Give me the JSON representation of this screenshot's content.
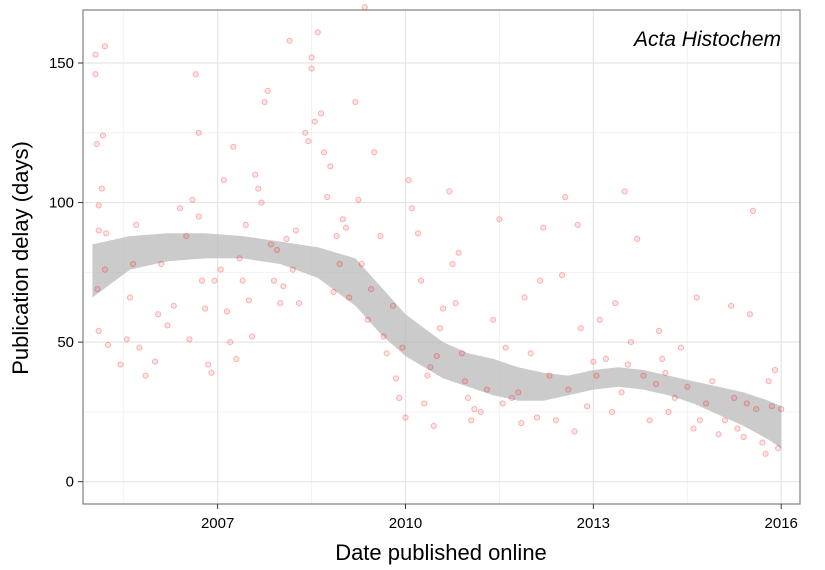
{
  "chart_data": {
    "type": "scatter",
    "title": "",
    "xlabel": "Date published online",
    "ylabel": "Publication delay (days)",
    "annotation": "Acta Histochem",
    "x_ticks": [
      "2007",
      "2010",
      "2013",
      "2016"
    ],
    "y_ticks": [
      "0",
      "50",
      "100",
      "150"
    ],
    "xlim": [
      2004.85,
      2016.3
    ],
    "ylim": [
      -8,
      169
    ],
    "grid": true,
    "point_color": "#ff0000",
    "band_color": "#bdbdbd",
    "points": [
      [
        2005.05,
        153
      ],
      [
        2005.05,
        146
      ],
      [
        2005.07,
        121
      ],
      [
        2005.2,
        156
      ],
      [
        2005.17,
        124
      ],
      [
        2005.15,
        105
      ],
      [
        2005.1,
        99
      ],
      [
        2005.1,
        90
      ],
      [
        2005.22,
        89
      ],
      [
        2005.08,
        69
      ],
      [
        2005.2,
        76
      ],
      [
        2005.1,
        54
      ],
      [
        2005.25,
        49
      ],
      [
        2005.45,
        42
      ],
      [
        2005.55,
        51
      ],
      [
        2005.65,
        78
      ],
      [
        2005.7,
        92
      ],
      [
        2005.6,
        66
      ],
      [
        2005.75,
        48
      ],
      [
        2005.85,
        38
      ],
      [
        2006.0,
        43
      ],
      [
        2006.05,
        60
      ],
      [
        2006.1,
        78
      ],
      [
        2006.2,
        56
      ],
      [
        2006.3,
        63
      ],
      [
        2006.4,
        98
      ],
      [
        2006.5,
        88
      ],
      [
        2006.55,
        51
      ],
      [
        2006.6,
        101
      ],
      [
        2006.65,
        146
      ],
      [
        2006.7,
        125
      ],
      [
        2006.7,
        95
      ],
      [
        2006.75,
        72
      ],
      [
        2006.8,
        62
      ],
      [
        2006.85,
        42
      ],
      [
        2006.9,
        39
      ],
      [
        2006.95,
        72
      ],
      [
        2007.05,
        76
      ],
      [
        2007.1,
        108
      ],
      [
        2007.15,
        61
      ],
      [
        2007.2,
        50
      ],
      [
        2007.25,
        120
      ],
      [
        2007.3,
        44
      ],
      [
        2007.35,
        80
      ],
      [
        2007.4,
        72
      ],
      [
        2007.45,
        92
      ],
      [
        2007.5,
        65
      ],
      [
        2007.55,
        52
      ],
      [
        2007.6,
        110
      ],
      [
        2007.65,
        105
      ],
      [
        2007.7,
        100
      ],
      [
        2007.75,
        136
      ],
      [
        2007.8,
        140
      ],
      [
        2007.85,
        85
      ],
      [
        2007.9,
        72
      ],
      [
        2007.95,
        83
      ],
      [
        2008.0,
        64
      ],
      [
        2008.05,
        70
      ],
      [
        2008.1,
        87
      ],
      [
        2008.15,
        158
      ],
      [
        2008.2,
        76
      ],
      [
        2008.25,
        90
      ],
      [
        2008.3,
        64
      ],
      [
        2008.4,
        125
      ],
      [
        2008.45,
        122
      ],
      [
        2008.5,
        152
      ],
      [
        2008.5,
        148
      ],
      [
        2008.55,
        129
      ],
      [
        2008.6,
        161
      ],
      [
        2008.65,
        132
      ],
      [
        2008.7,
        118
      ],
      [
        2008.75,
        102
      ],
      [
        2008.8,
        113
      ],
      [
        2008.85,
        68
      ],
      [
        2008.9,
        88
      ],
      [
        2008.95,
        78
      ],
      [
        2009.0,
        94
      ],
      [
        2009.05,
        91
      ],
      [
        2009.1,
        66
      ],
      [
        2009.2,
        136
      ],
      [
        2009.25,
        101
      ],
      [
        2009.3,
        78
      ],
      [
        2009.35,
        170
      ],
      [
        2009.4,
        58
      ],
      [
        2009.45,
        69
      ],
      [
        2009.5,
        118
      ],
      [
        2009.6,
        88
      ],
      [
        2009.65,
        52
      ],
      [
        2009.7,
        46
      ],
      [
        2009.8,
        63
      ],
      [
        2009.85,
        37
      ],
      [
        2009.9,
        30
      ],
      [
        2009.95,
        48
      ],
      [
        2010.0,
        23
      ],
      [
        2010.05,
        108
      ],
      [
        2010.1,
        98
      ],
      [
        2010.2,
        89
      ],
      [
        2010.25,
        72
      ],
      [
        2010.3,
        28
      ],
      [
        2010.35,
        38
      ],
      [
        2010.4,
        41
      ],
      [
        2010.45,
        20
      ],
      [
        2010.5,
        45
      ],
      [
        2010.55,
        55
      ],
      [
        2010.6,
        62
      ],
      [
        2010.7,
        104
      ],
      [
        2010.75,
        78
      ],
      [
        2010.8,
        64
      ],
      [
        2010.85,
        82
      ],
      [
        2010.9,
        46
      ],
      [
        2010.95,
        36
      ],
      [
        2011.0,
        30
      ],
      [
        2011.05,
        22
      ],
      [
        2011.1,
        26
      ],
      [
        2011.2,
        25
      ],
      [
        2011.3,
        33
      ],
      [
        2011.4,
        58
      ],
      [
        2011.5,
        94
      ],
      [
        2011.55,
        28
      ],
      [
        2011.6,
        48
      ],
      [
        2011.7,
        30
      ],
      [
        2011.8,
        32
      ],
      [
        2011.85,
        21
      ],
      [
        2011.9,
        66
      ],
      [
        2012.0,
        46
      ],
      [
        2012.1,
        23
      ],
      [
        2012.15,
        72
      ],
      [
        2012.2,
        91
      ],
      [
        2012.3,
        38
      ],
      [
        2012.4,
        22
      ],
      [
        2012.5,
        74
      ],
      [
        2012.55,
        102
      ],
      [
        2012.6,
        33
      ],
      [
        2012.7,
        18
      ],
      [
        2012.75,
        92
      ],
      [
        2012.8,
        55
      ],
      [
        2012.9,
        27
      ],
      [
        2013.0,
        43
      ],
      [
        2013.05,
        38
      ],
      [
        2013.1,
        58
      ],
      [
        2013.2,
        44
      ],
      [
        2013.3,
        25
      ],
      [
        2013.35,
        64
      ],
      [
        2013.45,
        32
      ],
      [
        2013.5,
        104
      ],
      [
        2013.55,
        42
      ],
      [
        2013.6,
        50
      ],
      [
        2013.7,
        87
      ],
      [
        2013.8,
        38
      ],
      [
        2013.9,
        22
      ],
      [
        2014.0,
        35
      ],
      [
        2014.05,
        54
      ],
      [
        2014.1,
        44
      ],
      [
        2014.15,
        39
      ],
      [
        2014.2,
        25
      ],
      [
        2014.3,
        30
      ],
      [
        2014.4,
        48
      ],
      [
        2014.5,
        34
      ],
      [
        2014.6,
        19
      ],
      [
        2014.65,
        66
      ],
      [
        2014.7,
        22
      ],
      [
        2014.8,
        28
      ],
      [
        2014.9,
        36
      ],
      [
        2015.0,
        17
      ],
      [
        2015.1,
        22
      ],
      [
        2015.2,
        63
      ],
      [
        2015.25,
        30
      ],
      [
        2015.3,
        19
      ],
      [
        2015.4,
        16
      ],
      [
        2015.45,
        28
      ],
      [
        2015.5,
        60
      ],
      [
        2015.55,
        97
      ],
      [
        2015.6,
        26
      ],
      [
        2015.7,
        14
      ],
      [
        2015.75,
        10
      ],
      [
        2015.8,
        36
      ],
      [
        2015.85,
        27
      ],
      [
        2015.9,
        40
      ],
      [
        2015.95,
        12
      ],
      [
        2016.0,
        26
      ]
    ],
    "band_x": [
      2005.0,
      2005.6,
      2006.2,
      2006.8,
      2007.4,
      2008.0,
      2008.6,
      2009.2,
      2009.6,
      2010.0,
      2010.3,
      2010.6,
      2011.0,
      2011.4,
      2011.8,
      2012.2,
      2012.6,
      2013.0,
      2013.4,
      2013.8,
      2014.2,
      2014.6,
      2015.0,
      2015.4,
      2015.8,
      2016.0
    ],
    "band_lower": [
      66,
      76,
      79,
      80,
      80,
      78,
      73,
      63,
      53,
      45,
      41,
      37,
      34,
      31,
      29,
      29,
      31,
      33,
      34,
      33,
      31,
      28,
      24,
      20,
      15,
      12
    ],
    "band_upper": [
      85,
      88,
      89,
      89,
      88,
      86,
      84,
      80,
      70,
      60,
      55,
      50,
      46,
      44,
      41,
      39,
      38,
      40,
      41,
      40,
      38,
      36,
      34,
      32,
      29,
      27
    ]
  }
}
